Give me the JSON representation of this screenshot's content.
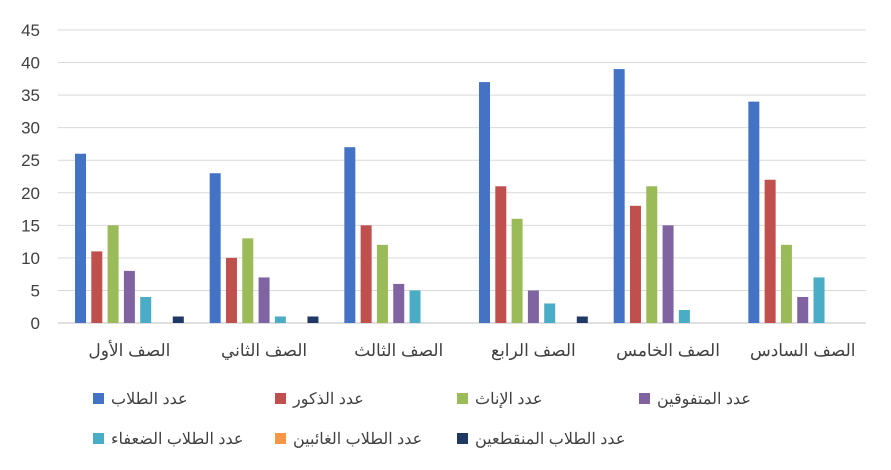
{
  "chart_data": {
    "type": "bar",
    "categories": [
      "الصف الأول",
      "الصف الثاني",
      "الصف الثالث",
      "الصف الرابع",
      "الصف الخامس",
      "الصف السادس"
    ],
    "series": [
      {
        "name": "عدد الطلاب",
        "color": "#4472C4",
        "values": [
          26,
          23,
          27,
          37,
          39,
          34
        ]
      },
      {
        "name": "عدد الذكور",
        "color": "#C0504D",
        "values": [
          11,
          10,
          15,
          21,
          18,
          22
        ]
      },
      {
        "name": "عدد الإناث",
        "color": "#9BBB59",
        "values": [
          15,
          13,
          12,
          16,
          21,
          12
        ]
      },
      {
        "name": "عدد المتفوقين",
        "color": "#8064A2",
        "values": [
          8,
          7,
          6,
          5,
          15,
          4
        ]
      },
      {
        "name": "عدد الطلاب الضعفاء",
        "color": "#4BACC6",
        "values": [
          4,
          1,
          5,
          3,
          2,
          7
        ]
      },
      {
        "name": "عدد الطلاب الغائبين",
        "color": "#F79646",
        "values": [
          0,
          0,
          0,
          0,
          0,
          0
        ]
      },
      {
        "name": "عدد الطلاب المنقطعين",
        "color": "#1F3864",
        "values": [
          1,
          1,
          0,
          1,
          0,
          0
        ]
      }
    ],
    "ylim": [
      0,
      45
    ],
    "yticks": [
      0,
      5,
      10,
      15,
      20,
      25,
      30,
      35,
      40,
      45
    ],
    "grid": true,
    "legend": "bottom"
  }
}
